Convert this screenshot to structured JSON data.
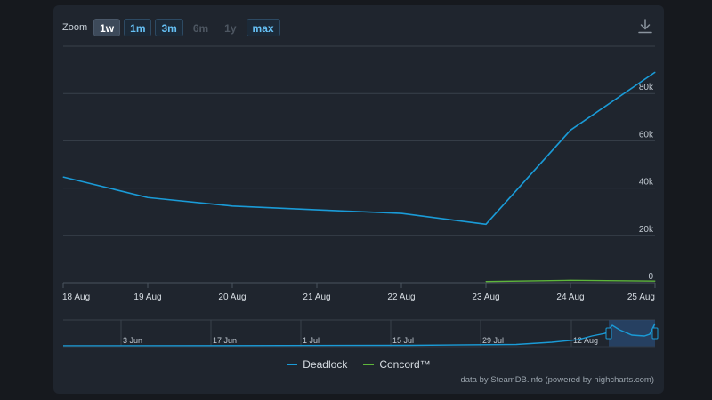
{
  "zoom": {
    "label": "Zoom",
    "buttons": [
      {
        "label": "1w",
        "state": "active"
      },
      {
        "label": "1m",
        "state": "outlined"
      },
      {
        "label": "3m",
        "state": "outlined"
      },
      {
        "label": "6m",
        "state": "disabled"
      },
      {
        "label": "1y",
        "state": "disabled"
      },
      {
        "label": "max",
        "state": "outlined"
      }
    ]
  },
  "icons": {
    "download": "download-icon"
  },
  "colors": {
    "deadlock": "#1a9bd7",
    "concord": "#5eb63b",
    "grid": "#39414b",
    "text": "#d7dde3"
  },
  "chart_data": {
    "type": "line",
    "categories": [
      "18 Aug",
      "19 Aug",
      "20 Aug",
      "21 Aug",
      "22 Aug",
      "23 Aug",
      "24 Aug",
      "25 Aug"
    ],
    "y_ticks": [
      "0",
      "20k",
      "40k",
      "60k",
      "80k"
    ],
    "ylim": [
      0,
      100000
    ],
    "grid": true,
    "legend_position": "bottom-center",
    "series": [
      {
        "name": "Deadlock",
        "values": [
          44700,
          36000,
          32400,
          30800,
          29300,
          24700,
          64500,
          89000
        ]
      },
      {
        "name": "Concord™",
        "values": [
          null,
          null,
          null,
          null,
          null,
          500,
          1000,
          700
        ]
      }
    ],
    "navigator": {
      "labels": [
        "3 Jun",
        "17 Jun",
        "1 Jul",
        "15 Jul",
        "29 Jul",
        "12 Aug"
      ]
    }
  },
  "credits": "data by SteamDB.info (powered by highcharts.com)"
}
